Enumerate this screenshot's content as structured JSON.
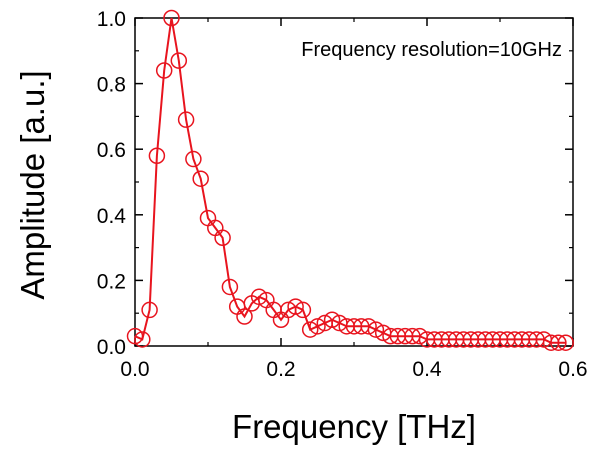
{
  "chart_data": {
    "type": "line",
    "title": "",
    "xlabel": "Frequency [THz]",
    "ylabel": "Amplitude [a.u.]",
    "annotation": "Frequency resolution=10GHz",
    "xlim": [
      0.0,
      0.6
    ],
    "ylim": [
      0.0,
      1.0
    ],
    "xticks": [
      "0.0",
      "0.2",
      "0.4",
      "0.6"
    ],
    "yticks": [
      "0.0",
      "0.2",
      "0.4",
      "0.6",
      "0.8",
      "1.0"
    ],
    "grid": false,
    "legend": "none",
    "marker": "open-circle",
    "color": "#e8141e",
    "series": [
      {
        "x": [
          0.0,
          0.01,
          0.02,
          0.03,
          0.04,
          0.05,
          0.06,
          0.07,
          0.08,
          0.09,
          0.1,
          0.11,
          0.12,
          0.13,
          0.14,
          0.15,
          0.16,
          0.17,
          0.18,
          0.19,
          0.2,
          0.21,
          0.22,
          0.23,
          0.24,
          0.25,
          0.26,
          0.27,
          0.28,
          0.29,
          0.3,
          0.31,
          0.32,
          0.33,
          0.34,
          0.35,
          0.36,
          0.37,
          0.38,
          0.39,
          0.4,
          0.41,
          0.42,
          0.43,
          0.44,
          0.45,
          0.46,
          0.47,
          0.48,
          0.49,
          0.5,
          0.51,
          0.52,
          0.53,
          0.54,
          0.55,
          0.56,
          0.57,
          0.58,
          0.59
        ],
        "y": [
          0.03,
          0.02,
          0.11,
          0.58,
          0.84,
          1.0,
          0.87,
          0.69,
          0.57,
          0.51,
          0.39,
          0.36,
          0.33,
          0.18,
          0.12,
          0.09,
          0.13,
          0.15,
          0.14,
          0.11,
          0.08,
          0.11,
          0.12,
          0.11,
          0.05,
          0.06,
          0.07,
          0.08,
          0.07,
          0.06,
          0.06,
          0.06,
          0.06,
          0.05,
          0.04,
          0.03,
          0.03,
          0.03,
          0.03,
          0.03,
          0.02,
          0.02,
          0.02,
          0.02,
          0.02,
          0.02,
          0.02,
          0.02,
          0.02,
          0.02,
          0.02,
          0.02,
          0.02,
          0.02,
          0.02,
          0.02,
          0.02,
          0.01,
          0.01,
          0.01
        ]
      }
    ]
  }
}
